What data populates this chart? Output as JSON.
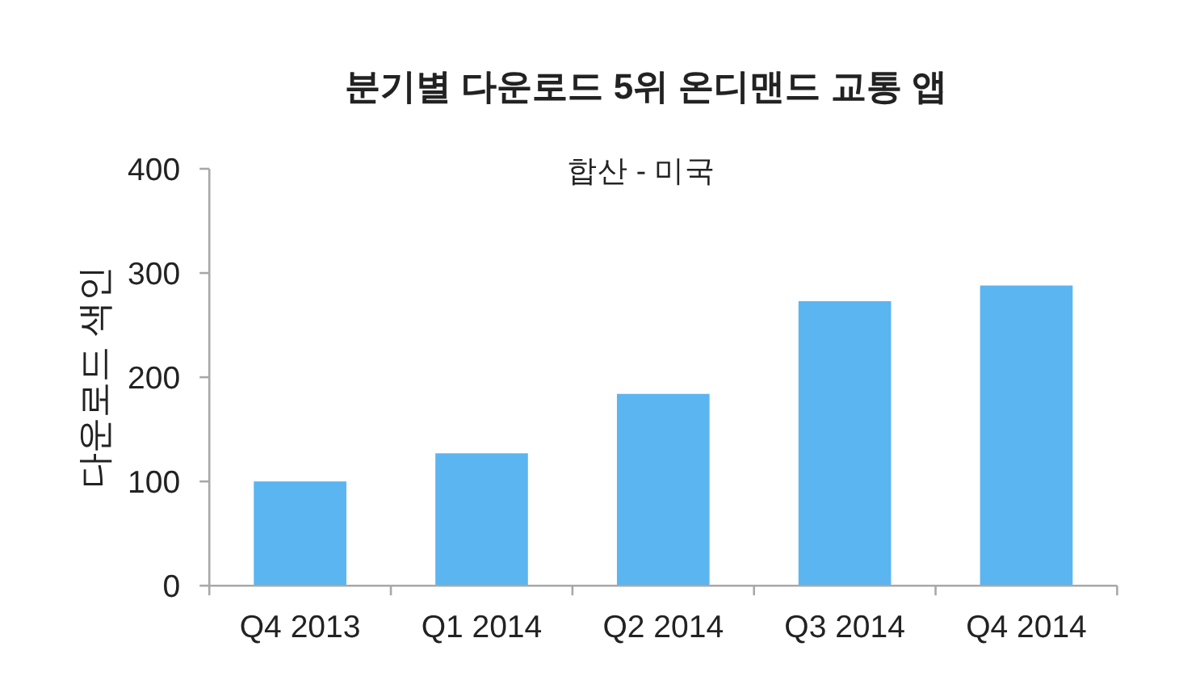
{
  "chart_data": {
    "type": "bar",
    "title": "분기별 다운로드 5위 온디맨드 교통 앱",
    "subtitle": "합산 - 미국",
    "ylabel": "다운로드 색인",
    "categories": [
      "Q4 2013",
      "Q1 2014",
      "Q2 2014",
      "Q3 2014",
      "Q4 2014"
    ],
    "values": [
      100,
      127,
      184,
      273,
      288
    ],
    "color": "#5bb5f0",
    "ylim": [
      0,
      400
    ],
    "yticks": [
      0,
      100,
      200,
      300,
      400
    ]
  }
}
